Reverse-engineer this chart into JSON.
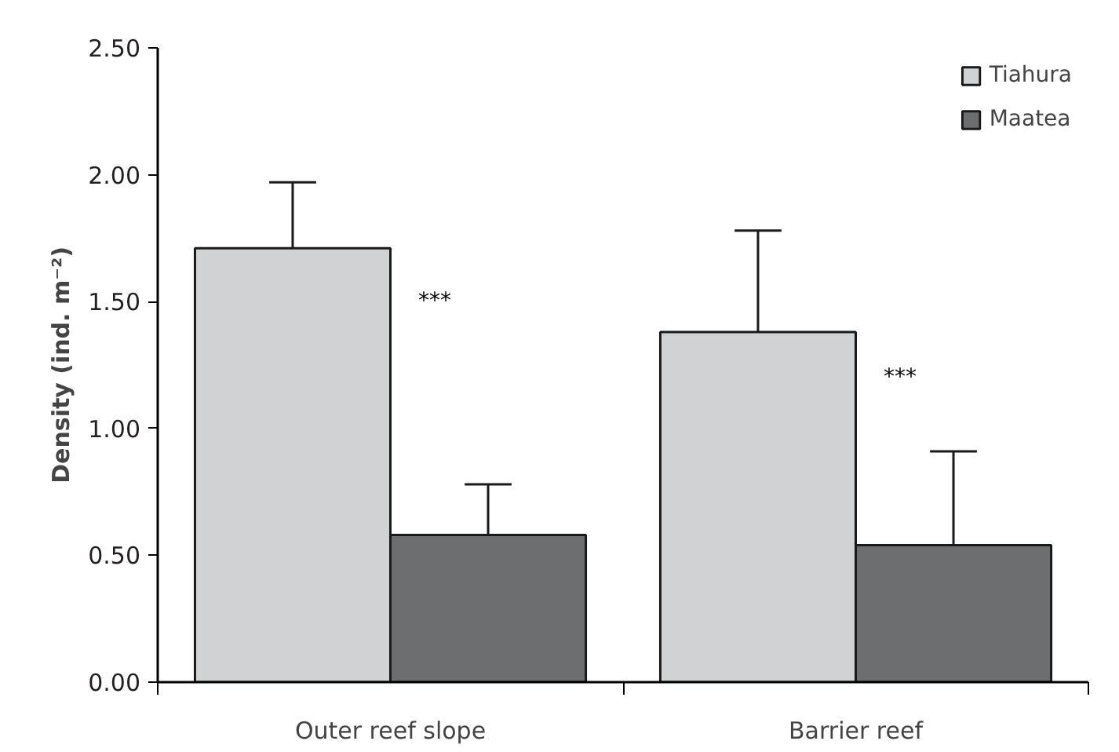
{
  "chart_data": {
    "type": "bar",
    "ylabel": "Density (ind. m⁻²)",
    "categories": [
      "Outer reef slope",
      "Barrier reef"
    ],
    "series": [
      {
        "name": "Tiahura",
        "color": "#d1d2d4",
        "values": [
          1.71,
          1.38
        ],
        "errors": [
          0.26,
          0.4
        ]
      },
      {
        "name": "Maatea",
        "color": "#6d6e70",
        "values": [
          0.58,
          0.54
        ],
        "errors": [
          0.2,
          0.37
        ]
      }
    ],
    "ylim": [
      0,
      2.5
    ],
    "yticks": [
      {
        "value": 0,
        "label": "0.00"
      },
      {
        "value": 0.5,
        "label": "0.50"
      },
      {
        "value": 1,
        "label": "1.00"
      },
      {
        "value": 1.5,
        "label": "1.50"
      },
      {
        "value": 2,
        "label": "2.00"
      },
      {
        "value": 2.5,
        "label": "2.50"
      }
    ],
    "annotations": [
      {
        "text": "***",
        "x": "Outer reef slope",
        "y": 1.5
      },
      {
        "text": "***",
        "x": "Barrier reef",
        "y": 1.2
      }
    ],
    "legend": "top right",
    "grid": false
  }
}
